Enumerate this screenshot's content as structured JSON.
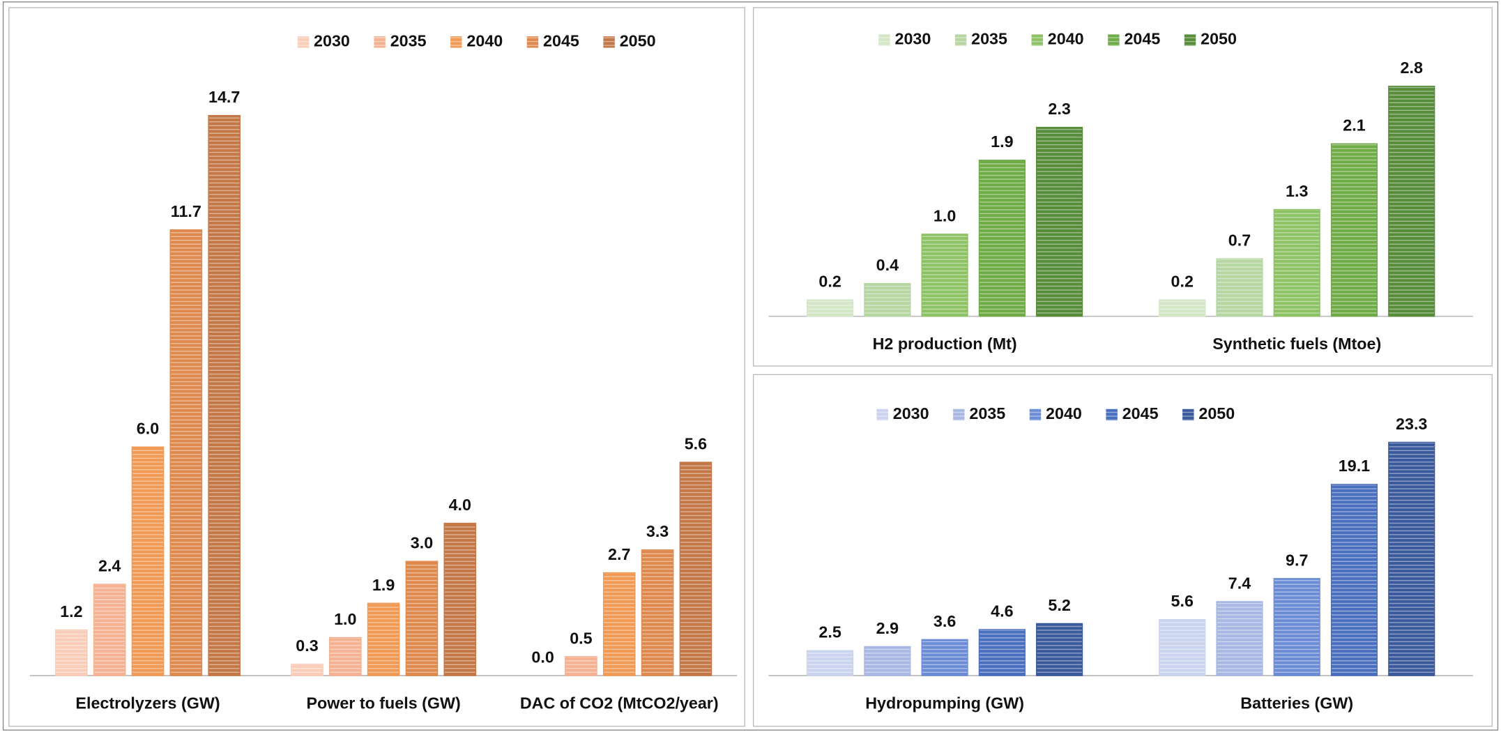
{
  "chart_data": [
    {
      "type": "bar",
      "categories": [
        "Electrolyzers (GW)",
        "Power to fuels (GW)",
        "DAC of CO2 (MtCO2/year)"
      ],
      "ylim": [
        0,
        16
      ],
      "series": [
        {
          "name": "2030",
          "color": "#f9cdb8",
          "values": [
            1.2,
            0.3,
            0.0
          ],
          "value_labels": [
            "1.2",
            "0.3",
            "0.0"
          ]
        },
        {
          "name": "2035",
          "color": "#f4b293",
          "values": [
            2.4,
            1.0,
            0.5
          ],
          "value_labels": [
            "2.4",
            "1.0",
            "0.5"
          ]
        },
        {
          "name": "2040",
          "color": "#f09a55",
          "values": [
            6.0,
            1.9,
            2.7
          ],
          "value_labels": [
            "6.0",
            "1.9",
            "2.7"
          ]
        },
        {
          "name": "2045",
          "color": "#de8a4e",
          "values": [
            11.7,
            3.0,
            3.3
          ],
          "value_labels": [
            "11.7",
            "3.0",
            "3.3"
          ]
        },
        {
          "name": "2050",
          "color": "#c47848",
          "values": [
            14.7,
            4.0,
            5.6
          ],
          "value_labels": [
            "14.7",
            "4.0",
            "5.6"
          ]
        }
      ]
    },
    {
      "type": "bar",
      "categories": [
        "H2 production (Mt)",
        "Synthetic fuels (Mtoe)"
      ],
      "ylim": [
        0,
        3
      ],
      "series": [
        {
          "name": "2030",
          "color": "#d3e6c6",
          "values": [
            0.2,
            0.2
          ],
          "value_labels": [
            "0.2",
            "0.2"
          ]
        },
        {
          "name": "2035",
          "color": "#b6d6a2",
          "values": [
            0.4,
            0.7
          ],
          "value_labels": [
            "0.4",
            "0.7"
          ]
        },
        {
          "name": "2040",
          "color": "#8dc265",
          "values": [
            1.0,
            1.3
          ],
          "value_labels": [
            "1.0",
            "1.3"
          ]
        },
        {
          "name": "2045",
          "color": "#6fab46",
          "values": [
            1.9,
            2.1
          ],
          "value_labels": [
            "1.9",
            "2.1"
          ]
        },
        {
          "name": "2050",
          "color": "#578c3a",
          "values": [
            2.3,
            2.8
          ],
          "value_labels": [
            "2.3",
            "2.8"
          ]
        }
      ]
    },
    {
      "type": "bar",
      "categories": [
        "Hydropumping (GW)",
        "Batteries (GW)"
      ],
      "ylim": [
        0,
        25
      ],
      "series": [
        {
          "name": "2030",
          "color": "#cbd4ee",
          "values": [
            2.5,
            5.6
          ],
          "value_labels": [
            "2.5",
            "5.6"
          ]
        },
        {
          "name": "2035",
          "color": "#a8b8e3",
          "values": [
            2.9,
            7.4
          ],
          "value_labels": [
            "2.9",
            "7.4"
          ]
        },
        {
          "name": "2040",
          "color": "#6c8dd6",
          "values": [
            3.6,
            9.7
          ],
          "value_labels": [
            "3.6",
            "9.7"
          ]
        },
        {
          "name": "2045",
          "color": "#4a6fbf",
          "values": [
            4.6,
            19.1
          ],
          "value_labels": [
            "4.6",
            "19.1"
          ]
        },
        {
          "name": "2050",
          "color": "#3b5a9c",
          "values": [
            5.2,
            23.3
          ],
          "value_labels": [
            "5.2",
            "23.3"
          ]
        }
      ]
    }
  ]
}
